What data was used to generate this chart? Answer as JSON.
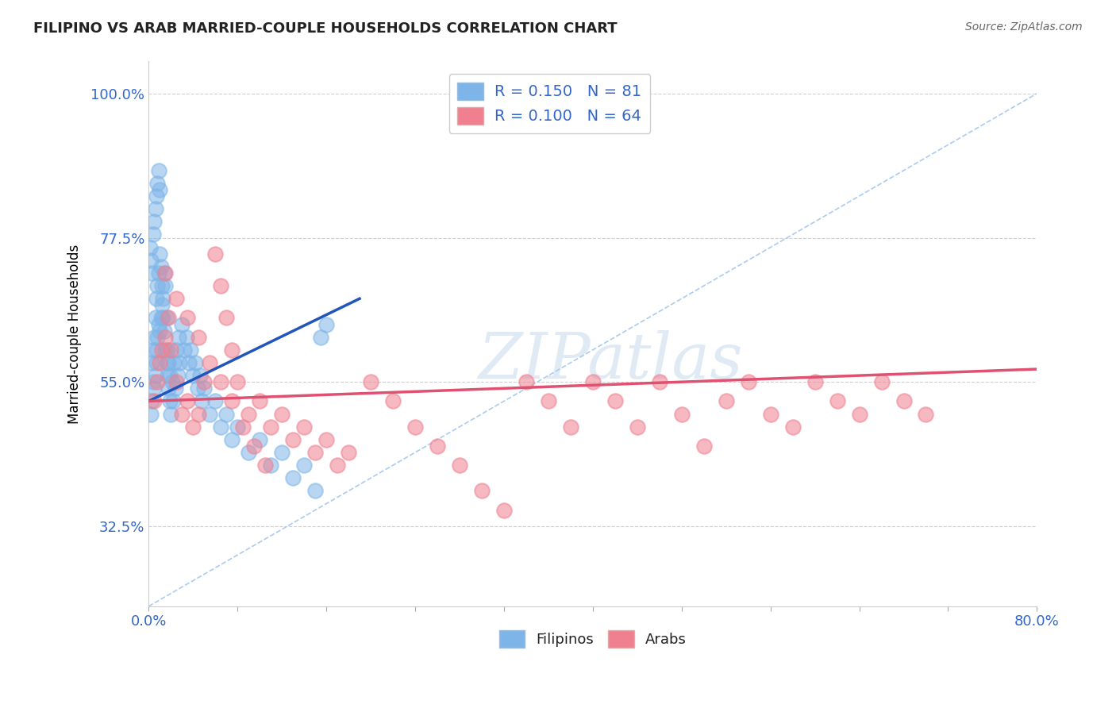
{
  "title": "FILIPINO VS ARAB MARRIED-COUPLE HOUSEHOLDS CORRELATION CHART",
  "source": "Source: ZipAtlas.com",
  "ylabel": "Married-couple Households",
  "xlim": [
    0.0,
    0.8
  ],
  "ylim": [
    0.2,
    1.05
  ],
  "yticks": [
    0.325,
    0.55,
    0.775,
    1.0
  ],
  "ytick_labels": [
    "32.5%",
    "55.0%",
    "77.5%",
    "100.0%"
  ],
  "xtick_labels_shown": [
    "0.0%",
    "80.0%"
  ],
  "filipino_R": 0.15,
  "filipino_N": 81,
  "arab_R": 0.1,
  "arab_N": 64,
  "filipino_color": "#7EB5E8",
  "arab_color": "#F08090",
  "filipino_line_color": "#2255BB",
  "arab_line_color": "#E05070",
  "diagonal_color": "#AACCEE",
  "watermark": "ZIPatlas",
  "filipino_x": [
    0.002,
    0.003,
    0.003,
    0.004,
    0.004,
    0.005,
    0.005,
    0.006,
    0.006,
    0.007,
    0.007,
    0.007,
    0.008,
    0.008,
    0.009,
    0.009,
    0.01,
    0.01,
    0.011,
    0.011,
    0.012,
    0.012,
    0.013,
    0.013,
    0.014,
    0.014,
    0.015,
    0.015,
    0.016,
    0.016,
    0.017,
    0.017,
    0.018,
    0.018,
    0.019,
    0.019,
    0.02,
    0.021,
    0.022,
    0.023,
    0.024,
    0.025,
    0.026,
    0.027,
    0.028,
    0.03,
    0.032,
    0.034,
    0.036,
    0.038,
    0.04,
    0.042,
    0.044,
    0.046,
    0.048,
    0.05,
    0.055,
    0.06,
    0.065,
    0.07,
    0.075,
    0.08,
    0.09,
    0.1,
    0.11,
    0.12,
    0.13,
    0.14,
    0.15,
    0.155,
    0.16,
    0.001,
    0.002,
    0.003,
    0.004,
    0.005,
    0.006,
    0.007,
    0.008,
    0.009,
    0.01
  ],
  "filipino_y": [
    0.5,
    0.52,
    0.58,
    0.55,
    0.6,
    0.54,
    0.62,
    0.56,
    0.65,
    0.58,
    0.6,
    0.68,
    0.62,
    0.7,
    0.64,
    0.72,
    0.63,
    0.75,
    0.65,
    0.73,
    0.67,
    0.7,
    0.65,
    0.68,
    0.63,
    0.72,
    0.6,
    0.7,
    0.58,
    0.65,
    0.56,
    0.6,
    0.54,
    0.58,
    0.52,
    0.56,
    0.5,
    0.55,
    0.52,
    0.58,
    0.54,
    0.6,
    0.56,
    0.62,
    0.58,
    0.64,
    0.6,
    0.62,
    0.58,
    0.6,
    0.56,
    0.58,
    0.54,
    0.56,
    0.52,
    0.54,
    0.5,
    0.52,
    0.48,
    0.5,
    0.46,
    0.48,
    0.44,
    0.46,
    0.42,
    0.44,
    0.4,
    0.42,
    0.38,
    0.62,
    0.64,
    0.76,
    0.74,
    0.72,
    0.78,
    0.8,
    0.82,
    0.84,
    0.86,
    0.88,
    0.85
  ],
  "arab_x": [
    0.005,
    0.008,
    0.01,
    0.012,
    0.015,
    0.018,
    0.02,
    0.025,
    0.03,
    0.035,
    0.04,
    0.045,
    0.05,
    0.06,
    0.065,
    0.07,
    0.075,
    0.08,
    0.09,
    0.1,
    0.11,
    0.12,
    0.13,
    0.14,
    0.15,
    0.16,
    0.17,
    0.18,
    0.2,
    0.22,
    0.24,
    0.26,
    0.28,
    0.3,
    0.32,
    0.34,
    0.36,
    0.38,
    0.4,
    0.42,
    0.44,
    0.46,
    0.48,
    0.5,
    0.52,
    0.54,
    0.56,
    0.58,
    0.6,
    0.62,
    0.64,
    0.66,
    0.68,
    0.7,
    0.015,
    0.025,
    0.035,
    0.045,
    0.055,
    0.065,
    0.075,
    0.085,
    0.095,
    0.105
  ],
  "arab_y": [
    0.52,
    0.55,
    0.58,
    0.6,
    0.62,
    0.65,
    0.6,
    0.55,
    0.5,
    0.52,
    0.48,
    0.5,
    0.55,
    0.75,
    0.7,
    0.65,
    0.6,
    0.55,
    0.5,
    0.52,
    0.48,
    0.5,
    0.46,
    0.48,
    0.44,
    0.46,
    0.42,
    0.44,
    0.55,
    0.52,
    0.48,
    0.45,
    0.42,
    0.38,
    0.35,
    0.55,
    0.52,
    0.48,
    0.55,
    0.52,
    0.48,
    0.55,
    0.5,
    0.45,
    0.52,
    0.55,
    0.5,
    0.48,
    0.55,
    0.52,
    0.5,
    0.55,
    0.52,
    0.5,
    0.72,
    0.68,
    0.65,
    0.62,
    0.58,
    0.55,
    0.52,
    0.48,
    0.45,
    0.42
  ]
}
